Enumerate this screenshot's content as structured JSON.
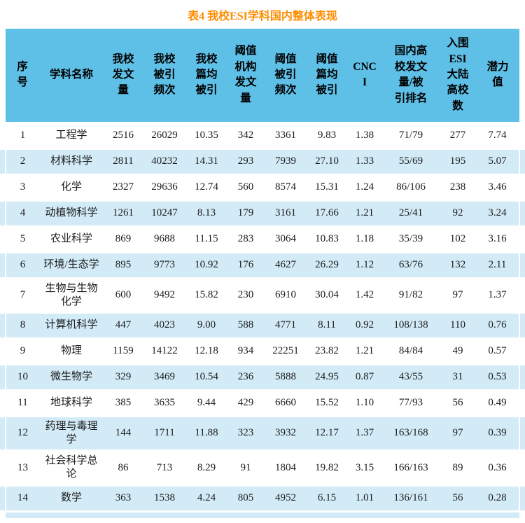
{
  "title": "表4 我校ESI学科国内整体表现",
  "colors": {
    "title_text": "#ff8c00",
    "header_bg": "#5fc0e7",
    "stripe_bg": "#d2ebf7",
    "body_text": "#1b1b1b"
  },
  "table": {
    "columns": [
      "序\n号",
      "学科名称",
      "我校\n发文\n量",
      "我校\n被引\n频次",
      "我校\n篇均\n被引",
      "阈值\n机构\n发文\n量",
      "阈值\n被引\n频次",
      "阈值\n篇均\n被引",
      "CNC\nI",
      "国内高\n校发文\n量/被\n引排名",
      "入围\nESI\n大陆\n高校\n数",
      "潜力\n值"
    ],
    "column_keys": [
      "index",
      "subject-name",
      "our-pub-count",
      "our-cite-count",
      "our-cite-per-paper",
      "threshold-pub-count",
      "threshold-cite-count",
      "threshold-cite-per-paper",
      "cnci",
      "domestic-rank",
      "esi-mainland-school-count",
      "potential-value"
    ],
    "rows": [
      [
        "1",
        "工程学",
        "2516",
        "26029",
        "10.35",
        "342",
        "3361",
        "9.83",
        "1.38",
        "71/79",
        "277",
        "7.74"
      ],
      [
        "2",
        "材料科学",
        "2811",
        "40232",
        "14.31",
        "293",
        "7939",
        "27.10",
        "1.33",
        "55/69",
        "195",
        "5.07"
      ],
      [
        "3",
        "化学",
        "2327",
        "29636",
        "12.74",
        "560",
        "8574",
        "15.31",
        "1.24",
        "86/106",
        "238",
        "3.46"
      ],
      [
        "4",
        "动植物科学",
        "1261",
        "10247",
        "8.13",
        "179",
        "3161",
        "17.66",
        "1.21",
        "25/41",
        "92",
        "3.24"
      ],
      [
        "5",
        "农业科学",
        "869",
        "9688",
        "11.15",
        "283",
        "3064",
        "10.83",
        "1.18",
        "35/39",
        "102",
        "3.16"
      ],
      [
        "6",
        "环境/生态学",
        "895",
        "9773",
        "10.92",
        "176",
        "4627",
        "26.29",
        "1.12",
        "63/76",
        "132",
        "2.11"
      ],
      [
        "7",
        "生物与生物化学",
        "600",
        "9492",
        "15.82",
        "230",
        "6910",
        "30.04",
        "1.42",
        "91/82",
        "97",
        "1.37"
      ],
      [
        "8",
        "计算机科学",
        "447",
        "4023",
        "9.00",
        "588",
        "4771",
        "8.11",
        "0.92",
        "108/138",
        "110",
        "0.76"
      ],
      [
        "9",
        "物理",
        "1159",
        "14122",
        "12.18",
        "934",
        "22251",
        "23.82",
        "1.21",
        "84/84",
        "49",
        "0.57"
      ],
      [
        "10",
        "微生物学",
        "329",
        "3469",
        "10.54",
        "236",
        "5888",
        "24.95",
        "0.87",
        "43/55",
        "31",
        "0.53"
      ],
      [
        "11",
        "地球科学",
        "385",
        "3635",
        "9.44",
        "429",
        "6660",
        "15.52",
        "1.10",
        "77/93",
        "56",
        "0.49"
      ],
      [
        "12",
        "药理与毒理学",
        "144",
        "1711",
        "11.88",
        "323",
        "3932",
        "12.17",
        "1.37",
        "163/168",
        "97",
        "0.39"
      ],
      [
        "13",
        "社会科学总论",
        "86",
        "713",
        "8.29",
        "91",
        "1804",
        "19.82",
        "3.15",
        "166/163",
        "89",
        "0.36"
      ],
      [
        "14",
        "数学",
        "363",
        "1538",
        "4.24",
        "805",
        "4952",
        "6.15",
        "1.01",
        "136/161",
        "56",
        "0.28"
      ]
    ]
  }
}
